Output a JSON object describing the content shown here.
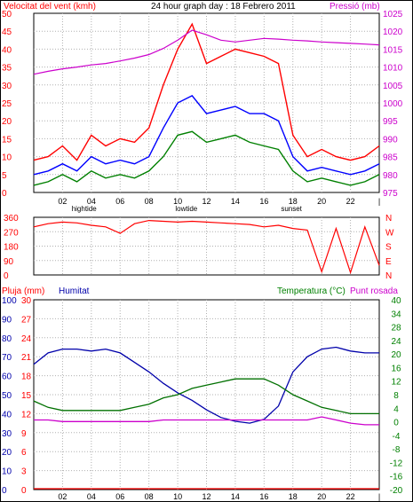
{
  "title": "24 hour graph day : 18 Febrero 2011",
  "colors": {
    "wind": "#ff0000",
    "gust_avg": "#0000ff",
    "avg": "#008000",
    "pressure": "#cc00cc",
    "humidity": "#0000aa",
    "temperature": "#007000",
    "dewpoint": "#cc00cc",
    "rain": "#ff0000",
    "grid": "#b0b0b0"
  },
  "x_ticks": [
    "02",
    "04",
    "06",
    "08",
    "10",
    "12",
    "14",
    "16",
    "18",
    "20",
    "22"
  ],
  "tide_labels": [
    {
      "label": "hightide",
      "at": 3.5
    },
    {
      "label": "lowtide",
      "at": 10.6
    },
    {
      "label": "sunset",
      "at": 17.9
    }
  ],
  "chart_data": [
    {
      "type": "line",
      "name": "wind-chart",
      "ylabel_left": "Velocitat del vent (kmh)",
      "ylabel_right": "Pressió (mb)",
      "ylim": [
        0,
        50
      ],
      "yticks": [
        "0",
        "5",
        "10",
        "15",
        "20",
        "25",
        "30",
        "35",
        "40",
        "45",
        "50"
      ],
      "ylim_right": [
        975,
        1025
      ],
      "yticks_right": [
        "975",
        "980",
        "985",
        "990",
        "995",
        "1000",
        "1005",
        "1010",
        "1015",
        "1020",
        "1025"
      ],
      "x": [
        0,
        1,
        2,
        3,
        4,
        5,
        6,
        7,
        8,
        9,
        10,
        11,
        12,
        13,
        14,
        15,
        16,
        17,
        18,
        19,
        20,
        21,
        22,
        23,
        24
      ],
      "series": [
        {
          "key": "gust",
          "values": [
            9,
            10,
            13,
            9,
            16,
            13,
            15,
            14,
            18,
            30,
            40,
            47,
            36,
            38,
            40,
            39,
            38,
            36,
            16,
            10,
            12,
            10,
            9,
            10,
            13
          ]
        },
        {
          "key": "gust_avg",
          "values": [
            5,
            6,
            8,
            6,
            10,
            8,
            9,
            8,
            10,
            18,
            25,
            27,
            22,
            23,
            24,
            22,
            22,
            20,
            10,
            6,
            7,
            6,
            5,
            6,
            8
          ]
        },
        {
          "key": "avg",
          "values": [
            2,
            3,
            5,
            3,
            6,
            4,
            5,
            4,
            6,
            10,
            16,
            17,
            14,
            15,
            16,
            14,
            13,
            12,
            6,
            3,
            4,
            3,
            2,
            3,
            5
          ]
        },
        {
          "key": "pressure",
          "values": [
            1008,
            1008.8,
            1009.5,
            1010,
            1010.6,
            1011,
            1011.7,
            1012.5,
            1013.5,
            1015.2,
            1017.5,
            1020.3,
            1019,
            1017.5,
            1017,
            1017.5,
            1018,
            1017.8,
            1017.5,
            1017.3,
            1017,
            1016.8,
            1016.6,
            1016.4,
            1016.2
          ]
        }
      ]
    },
    {
      "type": "line",
      "name": "direction-chart",
      "ylim": [
        0,
        360
      ],
      "yticks": [
        "0",
        "90",
        "180",
        "270",
        "360"
      ],
      "yticks_right": [
        "N",
        "E",
        "S",
        "W",
        "N"
      ],
      "x": [
        0,
        1,
        2,
        3,
        4,
        5,
        6,
        7,
        8,
        9,
        10,
        11,
        12,
        13,
        14,
        15,
        16,
        17,
        18,
        19,
        20,
        21,
        22,
        23,
        24
      ],
      "series": [
        {
          "key": "direction",
          "values": [
            300,
            320,
            330,
            325,
            310,
            300,
            260,
            320,
            340,
            335,
            330,
            335,
            330,
            325,
            320,
            315,
            300,
            310,
            290,
            280,
            20,
            290,
            15,
            300,
            60
          ]
        }
      ]
    },
    {
      "type": "line",
      "name": "humidity-temp-chart",
      "ylabel_rain": "Pluja (mm)",
      "ylabel_hum": "Humitat",
      "ylabel_right": "Temperatura (°C)",
      "ylabel_right2": "Punt rosada",
      "yticks_rain": [
        "0",
        "3",
        "6",
        "9",
        "12",
        "15",
        "18",
        "21",
        "24",
        "27",
        "30"
      ],
      "yticks_hum": [
        "0",
        "10",
        "20",
        "30",
        "40",
        "50",
        "60",
        "70",
        "80",
        "90",
        "100"
      ],
      "yticks_right": [
        "-20",
        "-16",
        "-12",
        "-8",
        "-4",
        "0",
        "4",
        "8",
        "12",
        "16",
        "20",
        "24",
        "28",
        "34",
        "40"
      ],
      "ylim_hum": [
        0,
        100
      ],
      "ylim_temp": [
        -20,
        40
      ],
      "x": [
        0,
        1,
        2,
        3,
        4,
        5,
        6,
        7,
        8,
        9,
        10,
        11,
        12,
        13,
        14,
        15,
        16,
        17,
        18,
        19,
        20,
        21,
        22,
        23,
        24
      ],
      "series": [
        {
          "key": "humidity",
          "values": [
            66,
            72,
            74,
            74,
            73,
            74,
            72,
            67,
            62,
            56,
            51,
            47,
            42,
            38,
            36,
            35,
            37,
            44,
            62,
            70,
            74,
            75,
            73,
            72,
            72
          ]
        },
        {
          "key": "temperature",
          "values": [
            8,
            6,
            5,
            5,
            5,
            5,
            5,
            6,
            7,
            9,
            10,
            12,
            13,
            14,
            15,
            15,
            15,
            13,
            10,
            8,
            6,
            5,
            4,
            4,
            4
          ]
        },
        {
          "key": "dewpoint",
          "values": [
            2,
            2,
            1.5,
            1.5,
            1.5,
            1.5,
            1.5,
            1.5,
            1.5,
            2,
            2,
            2,
            2,
            2,
            2,
            2,
            2,
            2,
            2,
            2,
            3,
            2,
            1,
            0.5,
            0.5
          ]
        },
        {
          "key": "rain",
          "values": [
            0,
            0,
            0,
            0,
            0,
            0,
            0,
            0,
            0,
            0,
            0,
            0,
            0,
            0,
            0,
            0,
            0,
            0,
            0,
            0,
            0,
            0,
            0,
            0,
            0
          ]
        }
      ]
    }
  ]
}
